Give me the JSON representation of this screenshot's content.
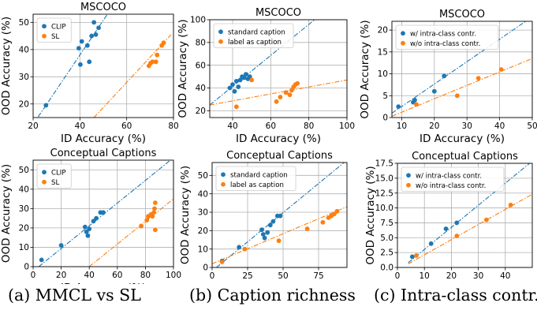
{
  "colors": {
    "blue": "#1f77b4",
    "orange": "#ff7f0e",
    "grid": "#b0b0b0"
  },
  "captions": [
    "(a) MMCL vs SL",
    "(b) Caption richness",
    "(c) Intra-class contr."
  ],
  "chart_data": [
    {
      "type": "scatter",
      "title": "MSCOCO",
      "xlabel": "ID Accuracy (%)",
      "ylabel": "OOD Accuracy (%)",
      "xlim": [
        20,
        80
      ],
      "ylim": [
        15,
        53
      ],
      "xticks": [
        20,
        40,
        60,
        80
      ],
      "yticks": [
        20,
        30,
        40,
        50
      ],
      "grid": true,
      "legend": "upper left",
      "series": [
        {
          "name": "CLIP",
          "color": "#1f77b4",
          "points": [
            [
              25.5,
              19.5
            ],
            [
              39.5,
              40.5
            ],
            [
              40.2,
              34.5
            ],
            [
              40.8,
              43
            ],
            [
              43.2,
              41.5
            ],
            [
              44,
              35.5
            ],
            [
              45,
              45
            ],
            [
              46,
              50
            ],
            [
              46.8,
              45.5
            ],
            [
              48,
              48
            ]
          ],
          "fit": [
            [
              20,
              12.5
            ],
            [
              80,
              89
            ]
          ]
        },
        {
          "name": "SL",
          "color": "#ff7f0e",
          "points": [
            [
              69.5,
              34
            ],
            [
              70.2,
              35
            ],
            [
              71,
              35.5
            ],
            [
              72.5,
              35.5
            ],
            [
              75,
              41.5
            ],
            [
              75.8,
              42.5
            ],
            [
              73,
              38
            ]
          ],
          "fit": [
            [
              46,
              15
            ],
            [
              79,
              45.5
            ]
          ]
        }
      ]
    },
    {
      "type": "scatter",
      "title": "MSCOCO",
      "xlabel": "ID Accuracy (%)",
      "ylabel": "OOD Accuracy (%)",
      "xlim": [
        28,
        100
      ],
      "ylim": [
        14,
        100
      ],
      "xticks": [
        40,
        60,
        80,
        100
      ],
      "yticks": [
        20,
        40,
        60,
        80,
        100
      ],
      "grid": true,
      "legend": "upper left",
      "series": [
        {
          "name": "standard caption",
          "color": "#1f77b4",
          "points": [
            [
              38.5,
              40
            ],
            [
              40,
              43
            ],
            [
              41,
              37
            ],
            [
              42,
              46
            ],
            [
              43,
              41
            ],
            [
              44,
              47
            ],
            [
              45,
              50
            ],
            [
              46,
              49
            ],
            [
              47,
              52
            ],
            [
              48,
              48
            ],
            [
              49,
              50
            ]
          ],
          "fit": [
            [
              28,
              25
            ],
            [
              83,
              100
            ]
          ]
        },
        {
          "name": "label as caption",
          "color": "#ff7f0e",
          "points": [
            [
              42,
              23.5
            ],
            [
              50,
              47
            ],
            [
              63,
              28
            ],
            [
              65,
              32
            ],
            [
              68,
              36
            ],
            [
              70,
              34
            ],
            [
              71,
              38
            ],
            [
              72,
              41
            ],
            [
              73,
              43
            ],
            [
              74,
              44
            ]
          ],
          "fit": [
            [
              28,
              25
            ],
            [
              100,
              47
            ]
          ]
        }
      ]
    },
    {
      "type": "scatter",
      "title": "MSCOCO",
      "xlabel": "ID Accuracy (%)",
      "ylabel": "OOD Accuracy (%)",
      "xlim": [
        7,
        50
      ],
      "ylim": [
        0,
        22
      ],
      "xticks": [
        10,
        20,
        30,
        40,
        50
      ],
      "yticks": [
        0,
        5,
        10,
        15,
        20
      ],
      "grid": true,
      "legend": "upper left",
      "series": [
        {
          "name": "w/ intra-class contr.",
          "color": "#1f77b4",
          "points": [
            [
              9,
              2.5
            ],
            [
              13.5,
              3.5
            ],
            [
              14,
              4
            ],
            [
              20,
              6
            ],
            [
              23,
              9.5
            ]
          ],
          "fit": [
            [
              7,
              1
            ],
            [
              48,
              22
            ]
          ]
        },
        {
          "name": "w/o intra-class contr.",
          "color": "#ff7f0e",
          "points": [
            [
              14.5,
              3
            ],
            [
              27,
              5
            ],
            [
              33.5,
              9
            ],
            [
              40.5,
              11
            ]
          ],
          "fit": [
            [
              7,
              0.3
            ],
            [
              50,
              13.5
            ]
          ]
        }
      ]
    },
    {
      "type": "scatter",
      "title": "Conceptual Captions",
      "xlabel": "ID Accuracy (%)",
      "ylabel": "OOD Accuracy (%)",
      "xlim": [
        0,
        100
      ],
      "ylim": [
        0,
        55
      ],
      "xticks": [
        0,
        20,
        40,
        60,
        80,
        100
      ],
      "yticks": [
        0,
        10,
        20,
        30,
        40,
        50
      ],
      "grid": true,
      "legend": "upper left",
      "series": [
        {
          "name": "CLIP",
          "color": "#1f77b4",
          "points": [
            [
              6,
              3.5
            ],
            [
              20,
              11
            ],
            [
              37,
              20.5
            ],
            [
              38,
              18
            ],
            [
              39,
              16
            ],
            [
              40,
              19.5
            ],
            [
              43,
              23.5
            ],
            [
              45,
              25
            ],
            [
              48,
              28
            ],
            [
              50,
              28
            ]
          ],
          "fit": [
            [
              4,
              0
            ],
            [
              97,
              54.5
            ]
          ]
        },
        {
          "name": "SL",
          "color": "#ff7f0e",
          "points": [
            [
              77,
              21
            ],
            [
              81,
              24
            ],
            [
              82,
              26
            ],
            [
              84,
              27
            ],
            [
              85,
              26
            ],
            [
              86,
              28
            ],
            [
              86.5,
              30
            ],
            [
              87,
              33
            ],
            [
              87,
              19
            ]
          ],
          "fit": [
            [
              40,
              0
            ],
            [
              100,
              35
            ]
          ]
        }
      ]
    },
    {
      "type": "scatter",
      "title": "Conceptual Captions",
      "xlabel": "ID Accuracy (%)",
      "ylabel": "OOD Accuracy (%)",
      "xlim": [
        0,
        95
      ],
      "ylim": [
        0,
        57
      ],
      "xticks": [
        0,
        25,
        50,
        75
      ],
      "yticks": [
        0,
        10,
        20,
        30,
        40,
        50
      ],
      "grid": true,
      "legend": "upper left",
      "series": [
        {
          "name": "standard caption",
          "color": "#1f77b4",
          "points": [
            [
              7,
              3.5
            ],
            [
              19,
              11
            ],
            [
              35,
              20.5
            ],
            [
              36,
              18
            ],
            [
              37,
              16
            ],
            [
              39,
              19
            ],
            [
              41,
              23
            ],
            [
              43,
              25
            ],
            [
              46,
              28
            ],
            [
              48,
              28
            ]
          ],
          "fit": [
            [
              3,
              0
            ],
            [
              93,
              57
            ]
          ]
        },
        {
          "name": "label as caption",
          "color": "#ff7f0e",
          "points": [
            [
              7,
              3
            ],
            [
              23,
              10
            ],
            [
              47,
              14.5
            ],
            [
              67,
              21
            ],
            [
              78,
              24.5
            ],
            [
              82,
              27
            ],
            [
              84,
              28
            ],
            [
              86,
              29
            ],
            [
              88,
              30.5
            ]
          ],
          "fit": [
            [
              0,
              2
            ],
            [
              95,
              33
            ]
          ]
        }
      ]
    },
    {
      "type": "scatter",
      "title": "Conceptual Captions",
      "xlabel": "ID Accuracy (%)",
      "ylabel": "OOD Accuracy (%)",
      "xlim": [
        0,
        50
      ],
      "ylim": [
        0,
        17.5
      ],
      "xticks": [
        0,
        10,
        20,
        30,
        40
      ],
      "yticks": [
        0.0,
        2.5,
        5.0,
        7.5,
        10.0,
        12.5,
        15.0,
        17.5
      ],
      "grid": true,
      "legend": "upper left",
      "series": [
        {
          "name": "w/ intra-class contr.",
          "color": "#1f77b4",
          "points": [
            [
              5.5,
              1.8
            ],
            [
              12.5,
              4
            ],
            [
              18,
              6.5
            ],
            [
              22,
              7.5
            ]
          ],
          "fit": [
            [
              4,
              0.8
            ],
            [
              49,
              17.5
            ]
          ]
        },
        {
          "name": "w/o intra-class contr.",
          "color": "#ff7f0e",
          "points": [
            [
              7,
              2
            ],
            [
              22,
              5.3
            ],
            [
              33,
              8
            ],
            [
              42,
              10.5
            ]
          ],
          "fit": [
            [
              4,
              0.6
            ],
            [
              50,
              12.3
            ]
          ]
        }
      ]
    }
  ]
}
